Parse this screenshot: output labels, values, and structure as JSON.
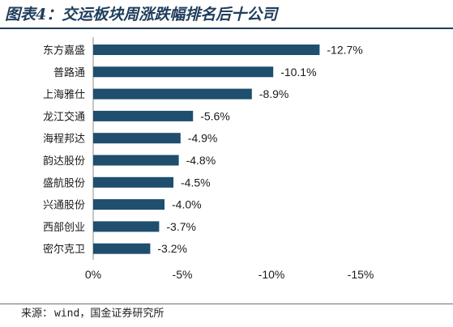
{
  "page": {
    "title": "图表4：交运板块周涨跌幅排名后十公司",
    "source_label": "来源：",
    "source_text": "wind，国金证券研究所"
  },
  "colors": {
    "bar": "#1f4e6e",
    "title": "#1f3d5c",
    "axis": "#8c8c8c"
  },
  "chart_data": {
    "type": "bar",
    "orientation": "horizontal",
    "categories": [
      "东方嘉盛",
      "普路通",
      "上海雅仕",
      "龙江交通",
      "海程邦达",
      "韵达股份",
      "盛航股份",
      "兴通股份",
      "西部创业",
      "密尔克卫"
    ],
    "values": [
      -12.7,
      -10.1,
      -8.9,
      -5.6,
      -4.9,
      -4.8,
      -4.5,
      -4.0,
      -3.7,
      -3.2
    ],
    "data_labels": [
      "-12.7%",
      "-10.1%",
      "-8.9%",
      "-5.6%",
      "-4.9%",
      "-4.8%",
      "-4.5%",
      "-4.0%",
      "-3.7%",
      "-3.2%"
    ],
    "x_ticks": [
      0,
      -5,
      -10,
      -15
    ],
    "x_tick_labels": [
      "0%",
      "-5%",
      "-10%",
      "-15%"
    ],
    "xlim": [
      0,
      -15
    ],
    "unit": "%",
    "grid": false,
    "legend": "none",
    "title": "",
    "xlabel": "",
    "ylabel": ""
  }
}
